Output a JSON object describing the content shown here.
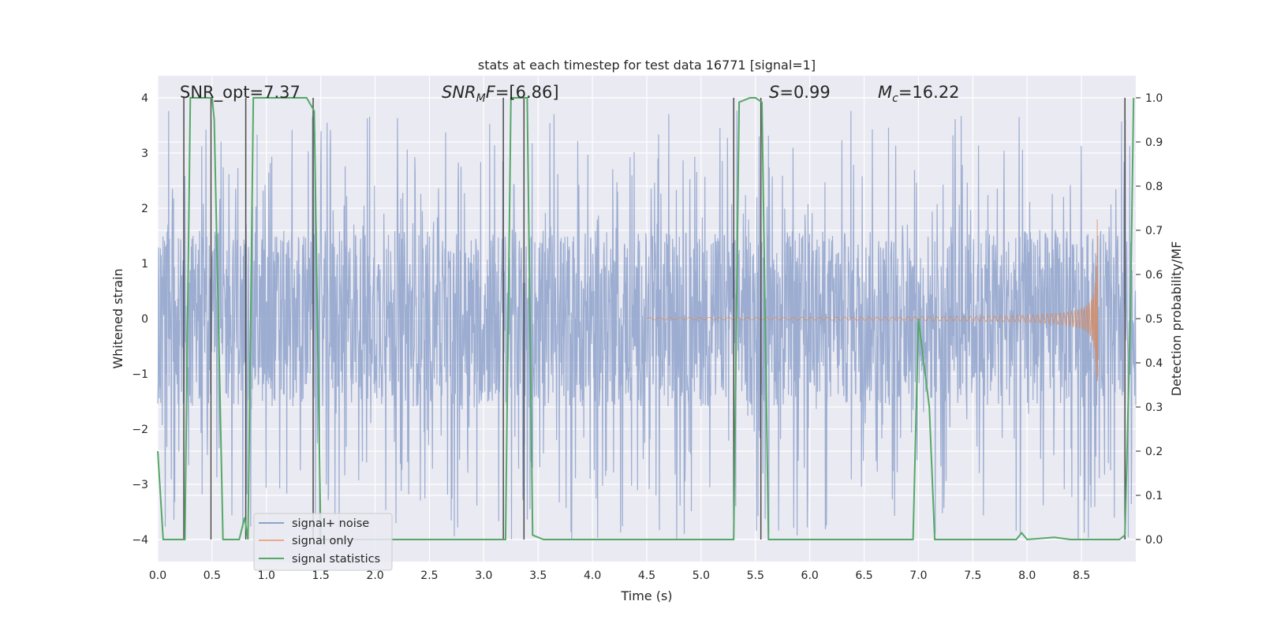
{
  "chart_data": {
    "type": "line",
    "title": "stats at each timestep for test data 16771 [signal=1]",
    "xlabel": "Time (s)",
    "ylabel_left": "Whitened strain",
    "ylabel_right": "Detection probability/MF",
    "xlim": [
      0.0,
      9.0
    ],
    "ylim_left": [
      -4.4,
      4.4
    ],
    "ylim_right": [
      -0.05,
      1.05
    ],
    "x_ticks": [
      0.0,
      0.5,
      1.0,
      1.5,
      2.0,
      2.5,
      3.0,
      3.5,
      4.0,
      4.5,
      5.0,
      5.5,
      6.0,
      6.5,
      7.0,
      7.5,
      8.0,
      8.5
    ],
    "x_tick_labels": [
      "0.0",
      "0.5",
      "1.0",
      "1.5",
      "2.0",
      "2.5",
      "3.0",
      "3.5",
      "4.0",
      "4.5",
      "5.0",
      "5.5",
      "6.0",
      "6.5",
      "7.0",
      "7.5",
      "8.0",
      "8.5"
    ],
    "y_ticks_left": [
      -4,
      -3,
      -2,
      -1,
      0,
      1,
      2,
      3,
      4
    ],
    "y_tick_labels_left": [
      "−4",
      "−3",
      "−2",
      "−1",
      "0",
      "1",
      "2",
      "3",
      "4"
    ],
    "y_ticks_right": [
      0.0,
      0.1,
      0.2,
      0.3,
      0.4,
      0.5,
      0.6,
      0.7,
      0.8,
      0.9,
      1.0
    ],
    "y_tick_labels_right": [
      "0.0",
      "0.1",
      "0.2",
      "0.3",
      "0.4",
      "0.5",
      "0.6",
      "0.7",
      "0.8",
      "0.9",
      "1.0"
    ],
    "grid": true,
    "legend_position": "lower-left",
    "annotations": [
      {
        "name": "snr-opt",
        "text": "SNR_opt=7.37",
        "x": 0.2,
        "y": 4.05
      },
      {
        "name": "snr-mf",
        "text": "SNR_MF=[6.86]",
        "x": 2.6,
        "y": 4.05
      },
      {
        "name": "stat-s",
        "text": "S=0.99",
        "x": 5.6,
        "y": 4.05
      },
      {
        "name": "chirp-mass",
        "text": "M_c=16.22",
        "x": 6.6,
        "y": 4.05
      }
    ],
    "series": [
      {
        "name": "signal+ noise",
        "axis": "left",
        "color": "#8ea2cb",
        "description": "whitened strain noise with signal, roughly spanning -1.6 to 1.6 with spikes up to about 3.8 and down to -4",
        "x_range": [
          0.0,
          9.0
        ],
        "envelope": [
          -1.6,
          1.6
        ],
        "peak_min": -4.0,
        "peak_max": 3.8
      },
      {
        "name": "signal only",
        "axis": "left",
        "color": "#dd8452",
        "description": "chirp waveform growing in amplitude and frequency, merger near 8.65 s",
        "x_start": 4.5,
        "x_merger": 8.65,
        "peak_amplitude": 1.8
      },
      {
        "name": "signal statistics",
        "axis": "right",
        "color": "#55a868",
        "x": [
          0.0,
          0.05,
          0.1,
          0.2,
          0.25,
          0.3,
          0.35,
          0.5,
          0.52,
          0.6,
          0.7,
          0.75,
          0.8,
          0.83,
          0.88,
          0.95,
          1.1,
          1.2,
          1.3,
          1.37,
          1.44,
          1.5,
          1.6,
          2.0,
          2.5,
          3.0,
          3.2,
          3.25,
          3.35,
          3.4,
          3.45,
          3.55,
          4.0,
          4.5,
          5.0,
          5.3,
          5.35,
          5.45,
          5.5,
          5.56,
          5.62,
          5.7,
          6.0,
          6.5,
          6.95,
          7.0,
          7.05,
          7.1,
          7.15,
          7.5,
          7.9,
          7.95,
          8.0,
          8.25,
          8.4,
          8.85,
          8.9,
          8.95,
          8.98
        ],
        "values": [
          0.2,
          0.0,
          0.0,
          0.0,
          0.0,
          1.0,
          1.0,
          1.0,
          0.95,
          0.0,
          0.0,
          0.0,
          0.05,
          0.0,
          1.0,
          1.0,
          1.0,
          1.0,
          1.0,
          1.0,
          0.97,
          0.0,
          0.0,
          0.0,
          0.0,
          0.0,
          0.0,
          1.0,
          1.0,
          1.0,
          0.01,
          0.0,
          0.0,
          0.0,
          0.0,
          0.0,
          0.99,
          1.0,
          1.0,
          0.99,
          0.0,
          0.0,
          0.0,
          0.0,
          0.0,
          0.5,
          0.4,
          0.3,
          0.0,
          0.0,
          0.0,
          0.015,
          0.0,
          0.005,
          0.0,
          0.0,
          0.01,
          0.5,
          1.0
        ]
      }
    ],
    "vertical_markers_x": [
      0.24,
      0.49,
      0.81,
      1.43,
      3.18,
      3.37,
      5.3,
      5.55,
      8.9
    ]
  }
}
